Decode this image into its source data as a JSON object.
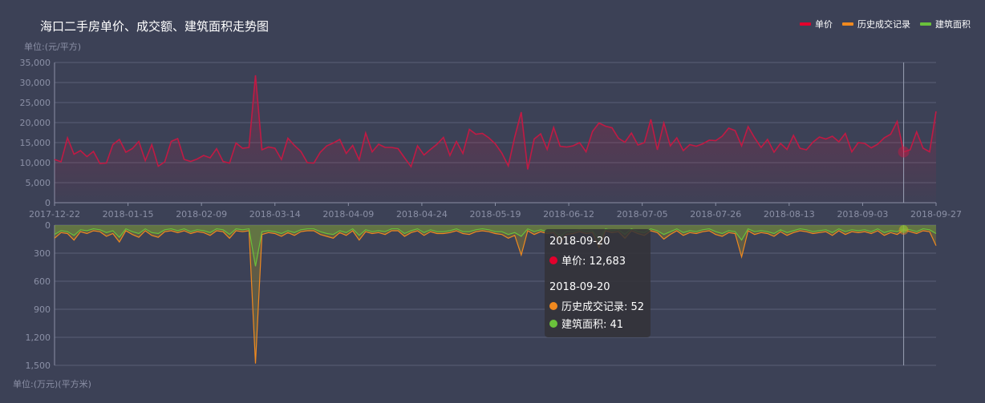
{
  "title": "海口二手房单价、成交额、建筑面积走势图",
  "unit_top": "单位:(元/平方)",
  "unit_bottom": "单位:(万元)(平方米)",
  "legend": [
    {
      "label": "单价",
      "color": "#e3002c"
    },
    {
      "label": "历史成交记录",
      "color": "#f0891f"
    },
    {
      "label": "建筑面积",
      "color": "#6ac13b"
    }
  ],
  "tooltip": {
    "date1": "2018-09-20",
    "row1": "单价: 12,683",
    "date2": "2018-09-20",
    "row2": "历史成交记录: 52",
    "row3": "建筑面积: 41"
  },
  "chart_data": [
    {
      "type": "area",
      "x_start": "2017-12-22",
      "x_end": "2018-09-27",
      "x_ticks": [
        "2017-12-22",
        "2018-01-15",
        "2018-02-09",
        "2018-03-14",
        "2018-04-09",
        "2018-04-24",
        "2018-05-19",
        "2018-06-12",
        "2018-07-05",
        "2018-07-26",
        "2018-08-13",
        "2018-09-03",
        "2018-09-27"
      ],
      "y_ticks": [
        "0",
        "5,000",
        "10,000",
        "15,000",
        "20,000",
        "25,000",
        "30,000",
        "35,000"
      ],
      "ylim": [
        0,
        35000
      ],
      "series": [
        {
          "name": "单价",
          "color": "#c01a44",
          "values": [
            10800,
            10200,
            16200,
            12100,
            13000,
            11500,
            12800,
            9800,
            9900,
            14500,
            15800,
            12600,
            13500,
            15300,
            10500,
            14500,
            9100,
            10200,
            15300,
            16000,
            10800,
            10300,
            10900,
            11800,
            11200,
            13500,
            10300,
            9900,
            14900,
            13600,
            13800,
            31800,
            13200,
            13900,
            13600,
            10800,
            16100,
            14300,
            12800,
            10000,
            9900,
            12600,
            14200,
            14900,
            15800,
            12300,
            14300,
            10700,
            17400,
            12700,
            14600,
            13800,
            13800,
            13500,
            11200,
            9000,
            14200,
            11900,
            13300,
            14600,
            16300,
            11800,
            15300,
            12300,
            18300,
            17100,
            17300,
            16200,
            14700,
            12400,
            9200,
            16400,
            22600,
            8300,
            15900,
            17200,
            13300,
            18800,
            14100,
            13900,
            14200,
            15000,
            12700,
            17800,
            19900,
            19100,
            18700,
            16100,
            15100,
            17400,
            14400,
            15000,
            20800,
            13200,
            19900,
            14200,
            16200,
            13000,
            14500,
            14100,
            14700,
            15600,
            15500,
            16600,
            18600,
            18000,
            14200,
            19000,
            16200,
            13800,
            15800,
            12600,
            14800,
            13300,
            16800,
            13600,
            13200,
            15100,
            16400,
            15900,
            16600,
            15200,
            17300,
            12700,
            15000,
            14800,
            13700,
            14600,
            16200,
            17100,
            20300,
            12683,
            13200,
            17700,
            13600,
            12700,
            22800
          ]
        }
      ]
    },
    {
      "type": "area",
      "inverted": true,
      "x_start": "2017-12-22",
      "x_end": "2018-09-27",
      "y_ticks": [
        "0",
        "300",
        "600",
        "900",
        "1,200",
        "1,500"
      ],
      "ylim": [
        0,
        1500
      ],
      "series": [
        {
          "name": "历史成交记录",
          "color": "#f0891f",
          "values": [
            140,
            80,
            90,
            160,
            70,
            90,
            60,
            70,
            120,
            90,
            180,
            60,
            100,
            130,
            60,
            110,
            130,
            70,
            60,
            80,
            60,
            90,
            70,
            80,
            110,
            60,
            70,
            140,
            60,
            70,
            60,
            1480,
            100,
            80,
            90,
            120,
            80,
            110,
            70,
            60,
            60,
            100,
            120,
            140,
            80,
            110,
            60,
            160,
            70,
            90,
            80,
            100,
            60,
            60,
            120,
            80,
            60,
            110,
            70,
            90,
            90,
            80,
            60,
            90,
            100,
            70,
            60,
            70,
            90,
            100,
            140,
            110,
            320,
            60,
            100,
            70,
            90,
            80,
            180,
            100,
            90,
            70,
            90,
            80,
            240,
            60,
            80,
            70,
            140,
            60,
            90,
            110,
            60,
            80,
            150,
            100,
            60,
            110,
            80,
            90,
            70,
            60,
            100,
            120,
            80,
            90,
            340,
            60,
            100,
            80,
            90,
            120,
            70,
            110,
            80,
            60,
            70,
            90,
            80,
            70,
            110,
            60,
            100,
            70,
            80,
            70,
            90,
            60,
            110,
            80,
            100,
            52,
            70,
            90,
            60,
            70,
            220
          ]
        },
        {
          "name": "建筑面积",
          "color": "#6ac13b",
          "values": [
            100,
            60,
            70,
            110,
            50,
            60,
            40,
            50,
            80,
            60,
            130,
            40,
            70,
            90,
            40,
            80,
            90,
            50,
            40,
            60,
            40,
            70,
            50,
            60,
            80,
            40,
            50,
            100,
            40,
            50,
            40,
            440,
            70,
            60,
            70,
            90,
            60,
            80,
            50,
            40,
            40,
            70,
            90,
            100,
            60,
            80,
            40,
            110,
            50,
            70,
            60,
            70,
            40,
            40,
            90,
            60,
            40,
            80,
            50,
            70,
            70,
            60,
            40,
            70,
            70,
            50,
            40,
            50,
            70,
            70,
            100,
            80,
            120,
            40,
            70,
            50,
            70,
            60,
            120,
            70,
            70,
            50,
            70,
            60,
            160,
            40,
            60,
            50,
            100,
            40,
            70,
            80,
            40,
            60,
            100,
            70,
            40,
            80,
            60,
            70,
            50,
            40,
            70,
            90,
            60,
            70,
            160,
            40,
            70,
            60,
            70,
            90,
            50,
            80,
            60,
            40,
            50,
            70,
            60,
            50,
            80,
            40,
            70,
            50,
            60,
            50,
            70,
            40,
            80,
            60,
            70,
            41,
            50,
            70,
            40,
            50,
            90
          ]
        }
      ]
    }
  ]
}
